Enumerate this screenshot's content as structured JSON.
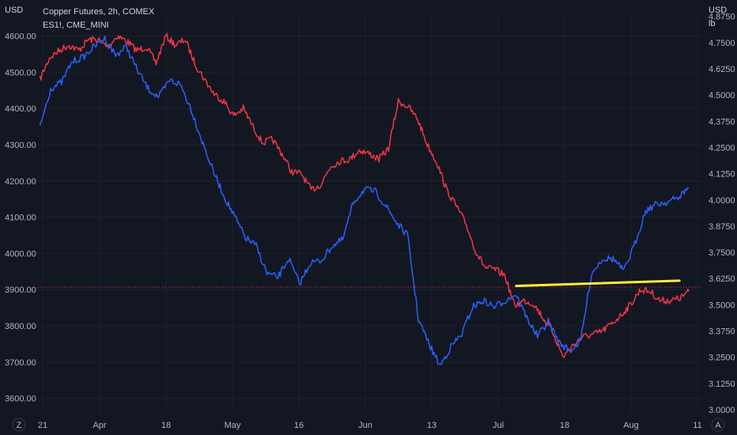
{
  "chart_data": {
    "type": "line",
    "legend": {
      "main_symbol": "Copper Futures, 2h, COMEX",
      "compare_symbol": "ES1!, CME_MINI"
    },
    "left_axis": {
      "unit": "USD",
      "range": [
        3560,
        4660
      ],
      "ticks": [
        "4600.00",
        "4500.00",
        "4400.00",
        "4300.00",
        "4200.00",
        "4100.00",
        "4000.00",
        "3900.00",
        "3800.00",
        "3700.00",
        "3600.00"
      ],
      "tick_values": [
        4600,
        4500,
        4400,
        4300,
        4200,
        4100,
        4000,
        3900,
        3800,
        3700,
        3600
      ]
    },
    "right_axis": {
      "unit_top": "USD",
      "unit_bottom": "lb",
      "range": [
        2.985,
        4.885
      ],
      "ticks": [
        "4.8750",
        "4.7500",
        "4.6250",
        "4.5000",
        "4.3750",
        "4.2500",
        "4.1250",
        "4.0000",
        "3.8750",
        "3.7500",
        "3.6250",
        "3.5000",
        "3.3750",
        "3.2500",
        "3.1250",
        "3.0000"
      ],
      "tick_values": [
        4.875,
        4.75,
        4.625,
        4.5,
        4.375,
        4.25,
        4.125,
        4.0,
        3.875,
        3.75,
        3.625,
        3.5,
        3.375,
        3.25,
        3.125,
        3.0
      ]
    },
    "x_axis": {
      "ticks": [
        "21",
        "Apr",
        "18",
        "May",
        "16",
        "Jun",
        "13",
        "Jul",
        "18",
        "Aug",
        "11"
      ],
      "tick_index": [
        0.5,
        6.5,
        13.5,
        20.5,
        27.5,
        34.5,
        41.5,
        48.5,
        55.5,
        62.5,
        69.5
      ],
      "corner_left": "Z",
      "corner_right": "A"
    },
    "series": [
      {
        "symbol": "ES1!",
        "color": "#f23645",
        "axis": "left",
        "values": [
          4480,
          4540,
          4560,
          4575,
          4560,
          4590,
          4590,
          4570,
          4600,
          4585,
          4560,
          4570,
          4525,
          4600,
          4575,
          4590,
          4525,
          4480,
          4440,
          4420,
          4380,
          4400,
          4350,
          4305,
          4315,
          4275,
          4225,
          4220,
          4175,
          4190,
          4240,
          4255,
          4260,
          4285,
          4275,
          4260,
          4290,
          4420,
          4405,
          4370,
          4300,
          4250,
          4175,
          4130,
          4080,
          4005,
          3960,
          3955,
          3940,
          3855,
          3870,
          3860,
          3820,
          3780,
          3715,
          3745,
          3770,
          3775,
          3785,
          3805,
          3830,
          3860,
          3900,
          3895,
          3870,
          3870,
          3875,
          3895
        ]
      },
      {
        "symbol": "Copper Futures",
        "color": "#2962ff",
        "axis": "right",
        "values": [
          4.35,
          4.53,
          4.56,
          4.66,
          4.68,
          4.73,
          4.77,
          4.69,
          4.73,
          4.62,
          4.53,
          4.49,
          4.57,
          4.55,
          4.43,
          4.28,
          4.14,
          4.02,
          3.92,
          3.82,
          3.78,
          3.65,
          3.63,
          3.72,
          3.6,
          3.7,
          3.71,
          3.78,
          3.81,
          3.99,
          4.05,
          4.04,
          3.97,
          3.89,
          3.83,
          3.43,
          3.31,
          3.21,
          3.3,
          3.36,
          3.49,
          3.52,
          3.49,
          3.52,
          3.55,
          3.44,
          3.35,
          3.42,
          3.32,
          3.28,
          3.33,
          3.65,
          3.72,
          3.72,
          3.66,
          3.79,
          3.95,
          3.98,
          3.99,
          4.01,
          4.06
        ]
      }
    ],
    "horizontal_line": {
      "value": 3907,
      "axis": "left",
      "color": "#f23645",
      "style": "dotted"
    },
    "trendline": {
      "color": "#ffeb3b",
      "from": {
        "x_index": 50.4,
        "value": 3.59
      },
      "to": {
        "x_index": 67.6,
        "value": 3.615
      }
    },
    "grid": true,
    "legend_position": "top-left"
  }
}
